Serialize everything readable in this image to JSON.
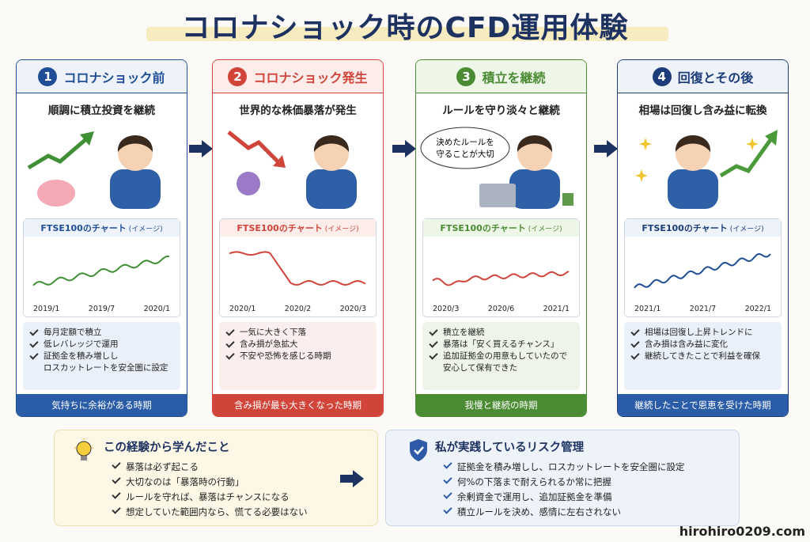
{
  "title": "コロナショック時のCFD運用体験",
  "stages": [
    {
      "number": "1",
      "heading": "コロナショック前",
      "caption": "順調に積立投資を継続",
      "chart_title": "FTSE100のチャート",
      "chart_note": "(イメージ)",
      "dates": [
        "2019/1",
        "2019/7",
        "2020/1"
      ],
      "items": [
        [
          "毎月定額で積立"
        ],
        [
          "低レバレッジで運用"
        ],
        [
          "証拠金を積み増しし",
          "ロスカットレートを安全圏に設定"
        ]
      ],
      "footer": "気持ちに余裕がある時期"
    },
    {
      "number": "2",
      "heading": "コロナショック発生",
      "caption": "世界的な株価暴落が発生",
      "chart_title": "FTSE100のチャート",
      "chart_note": "(イメージ)",
      "dates": [
        "2020/1",
        "2020/2",
        "2020/3"
      ],
      "items": [
        [
          "一気に大きく下落"
        ],
        [
          "含み損が急拡大"
        ],
        [
          "不安や恐怖を感じる時期"
        ]
      ],
      "footer": "含み損が最も大きくなった時期"
    },
    {
      "number": "3",
      "heading": "積立を継続",
      "caption": "ルールを守り淡々と継続",
      "bubble": [
        "決めたルールを",
        "守ることが大切"
      ],
      "chart_title": "FTSE100のチャート",
      "chart_note": "(イメージ)",
      "dates": [
        "2020/3",
        "2020/6",
        "2021/1"
      ],
      "items": [
        [
          "積立を継続"
        ],
        [
          "暴落は「安く買えるチャンス」"
        ],
        [
          "追加証拠金の用意もしていたので",
          "安心して保有できた"
        ]
      ],
      "footer": "我慢と継続の時期"
    },
    {
      "number": "4",
      "heading": "回復とその後",
      "caption": "相場は回復し含み益に転換",
      "chart_title": "FTSE100のチャート",
      "chart_note": "(イメージ)",
      "dates": [
        "2021/1",
        "2021/7",
        "2022/1"
      ],
      "items": [
        [
          "相場は回復し上昇トレンドに"
        ],
        [
          "含み損は含み益に変化"
        ],
        [
          "継続してきたことで利益を確保"
        ]
      ],
      "footer": "継続したことで恩恵を受けた時期"
    }
  ],
  "lessons": {
    "title": "この経験から学んだこと",
    "items": [
      "暴落は必ず起こる",
      "大切なのは「暴落時の行動」",
      "ルールを守れば、暴落はチャンスになる",
      "想定していた範囲内なら、慌てる必要はない"
    ]
  },
  "risk": {
    "title": "私が実践しているリスク管理",
    "items": [
      "証拠金を積み増しし、ロスカットレートを安全圏に設定",
      "何%の下落まで耐えられるか常に把握",
      "余剰資金で運用し、追加証拠金を準備",
      "積立ルールを決め、感情に左右されない"
    ]
  },
  "site": "hirohiro0209.com"
}
